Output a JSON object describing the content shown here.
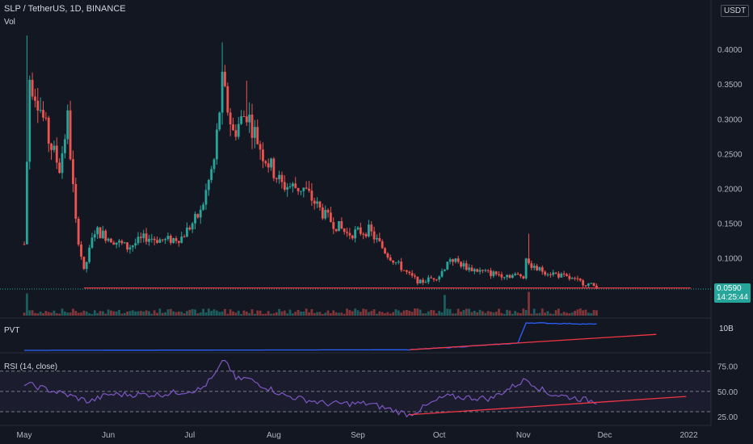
{
  "header": {
    "symbol": "SLP / TetherUS, 1D, BINANCE",
    "vol_label": "Vol",
    "currency": "USDT"
  },
  "price_axis": {
    "ticks": [
      "0.4000",
      "0.3500",
      "0.3000",
      "0.2500",
      "0.2000",
      "0.1500",
      "0.1000"
    ],
    "current_price": "0.0590",
    "countdown": "14:25:44"
  },
  "pvt_pane": {
    "title": "PVT",
    "axis_label": "10B"
  },
  "rsi_pane": {
    "title": "RSI (14, close)",
    "ticks": [
      "75.00",
      "50.00",
      "25.00"
    ]
  },
  "time_axis": {
    "labels": [
      "May",
      "Jun",
      "Jul",
      "Aug",
      "Sep",
      "Oct",
      "Nov",
      "Dec",
      "2022"
    ]
  },
  "colors": {
    "background": "#131722",
    "up": "#26a69a",
    "down": "#ef5350",
    "pvt_line": "#2962ff",
    "rsi_line": "#7e57c2",
    "trendline": "#f23645",
    "price_badge": "#26a69a"
  },
  "chart_data": [
    {
      "type": "candlestick",
      "series_label": "SLP / TetherUS, 1D, BINANCE",
      "ylim": [
        0.03,
        0.45
      ],
      "x_range": [
        "2021-05-01",
        "2022-01-05"
      ],
      "close_keypoints": [
        {
          "x": "2021-05-01",
          "y": 0.12
        },
        {
          "x": "2021-05-03",
          "y": 0.36
        },
        {
          "x": "2021-05-06",
          "y": 0.33
        },
        {
          "x": "2021-05-10",
          "y": 0.27
        },
        {
          "x": "2021-05-14",
          "y": 0.23
        },
        {
          "x": "2021-05-17",
          "y": 0.3
        },
        {
          "x": "2021-05-20",
          "y": 0.15
        },
        {
          "x": "2021-05-23",
          "y": 0.08
        },
        {
          "x": "2021-05-27",
          "y": 0.14
        },
        {
          "x": "2021-06-01",
          "y": 0.13
        },
        {
          "x": "2021-06-08",
          "y": 0.115
        },
        {
          "x": "2021-06-15",
          "y": 0.13
        },
        {
          "x": "2021-06-22",
          "y": 0.125
        },
        {
          "x": "2021-06-28",
          "y": 0.13
        },
        {
          "x": "2021-07-05",
          "y": 0.165
        },
        {
          "x": "2021-07-10",
          "y": 0.24
        },
        {
          "x": "2021-07-13",
          "y": 0.35
        },
        {
          "x": "2021-07-17",
          "y": 0.28
        },
        {
          "x": "2021-07-22",
          "y": 0.31
        },
        {
          "x": "2021-07-28",
          "y": 0.25
        },
        {
          "x": "2021-08-04",
          "y": 0.205
        },
        {
          "x": "2021-08-12",
          "y": 0.2
        },
        {
          "x": "2021-08-20",
          "y": 0.16
        },
        {
          "x": "2021-08-28",
          "y": 0.135
        },
        {
          "x": "2021-09-05",
          "y": 0.14
        },
        {
          "x": "2021-09-12",
          "y": 0.105
        },
        {
          "x": "2021-09-20",
          "y": 0.075
        },
        {
          "x": "2021-09-24",
          "y": 0.065
        },
        {
          "x": "2021-10-01",
          "y": 0.075
        },
        {
          "x": "2021-10-05",
          "y": 0.1
        },
        {
          "x": "2021-10-12",
          "y": 0.085
        },
        {
          "x": "2021-10-20",
          "y": 0.078
        },
        {
          "x": "2021-10-28",
          "y": 0.075
        },
        {
          "x": "2021-11-01",
          "y": 0.075
        },
        {
          "x": "2021-11-02",
          "y": 0.1
        },
        {
          "x": "2021-11-05",
          "y": 0.085
        },
        {
          "x": "2021-11-12",
          "y": 0.078
        },
        {
          "x": "2021-11-20",
          "y": 0.068
        },
        {
          "x": "2021-11-28",
          "y": 0.059
        }
      ],
      "spikes": [
        {
          "x": "2021-05-02",
          "high": 0.42
        },
        {
          "x": "2021-07-13",
          "high": 0.41
        },
        {
          "x": "2021-07-22",
          "high": 0.355
        },
        {
          "x": "2021-11-03",
          "high": 0.135
        }
      ],
      "horizontal_line": 0.057
    },
    {
      "type": "bar",
      "name": "Vol",
      "spikes": [
        "2021-05-02",
        "2021-10-03",
        "2021-11-03"
      ]
    },
    {
      "type": "line",
      "name": "PVT",
      "axis_label": "10B",
      "keypoints": [
        {
          "x": "2021-05-01",
          "y": 0.0
        },
        {
          "x": "2021-09-20",
          "y": 0.02
        },
        {
          "x": "2021-10-05",
          "y": 0.1
        },
        {
          "x": "2021-10-30",
          "y": 0.25
        },
        {
          "x": "2021-11-02",
          "y": 0.95
        },
        {
          "x": "2021-11-28",
          "y": 0.9
        }
      ],
      "trendline": [
        {
          "x": "2021-09-20",
          "y": 0.02
        },
        {
          "x": "2021-12-20",
          "y": 0.55
        }
      ]
    },
    {
      "type": "line",
      "name": "RSI (14, close)",
      "ylim": [
        18,
        85
      ],
      "bands": [
        70,
        50,
        30
      ],
      "keypoints": [
        {
          "x": "2021-05-01",
          "y": 58
        },
        {
          "x": "2021-05-15",
          "y": 48
        },
        {
          "x": "2021-05-25",
          "y": 40
        },
        {
          "x": "2021-06-01",
          "y": 47
        },
        {
          "x": "2021-06-20",
          "y": 47
        },
        {
          "x": "2021-07-05",
          "y": 52
        },
        {
          "x": "2021-07-10",
          "y": 65
        },
        {
          "x": "2021-07-14",
          "y": 82
        },
        {
          "x": "2021-07-18",
          "y": 62
        },
        {
          "x": "2021-07-22",
          "y": 63
        },
        {
          "x": "2021-08-05",
          "y": 46
        },
        {
          "x": "2021-08-20",
          "y": 38
        },
        {
          "x": "2021-09-05",
          "y": 38
        },
        {
          "x": "2021-09-20",
          "y": 27
        },
        {
          "x": "2021-10-03",
          "y": 45
        },
        {
          "x": "2021-10-20",
          "y": 43
        },
        {
          "x": "2021-11-02",
          "y": 62
        },
        {
          "x": "2021-11-10",
          "y": 48
        },
        {
          "x": "2021-11-28",
          "y": 40
        }
      ],
      "trendline": [
        {
          "x": "2021-09-20",
          "y": 27
        },
        {
          "x": "2021-12-31",
          "y": 45
        }
      ]
    }
  ]
}
